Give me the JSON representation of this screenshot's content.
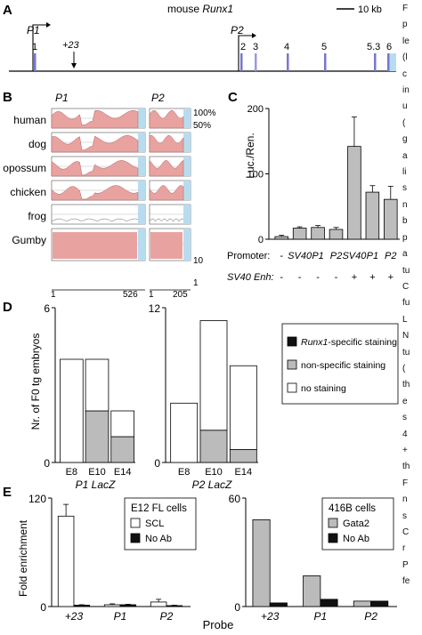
{
  "panels": {
    "A": {
      "label": "A",
      "title_prefix": "mouse ",
      "gene": "Runx1",
      "scale_bar": "10 kb",
      "promoters": [
        "P1",
        "P2"
      ],
      "enhancer": "+23",
      "exons": [
        "1",
        "2",
        "3",
        "4",
        "5",
        "5.3",
        "6"
      ]
    },
    "B": {
      "label": "B",
      "region_labels": [
        "P1",
        "P2"
      ],
      "species": [
        "human",
        "dog",
        "opossum",
        "chicken",
        "frog",
        "Gumby"
      ],
      "right_axis": [
        "100%",
        "50%"
      ],
      "gumby_axis": "10",
      "gumby_axis_low": "1",
      "p1_axis": [
        "1",
        "526"
      ],
      "p2_axis": [
        "1",
        "205"
      ]
    },
    "C": {
      "label": "C",
      "chart_data": {
        "type": "bar",
        "ylabel": "Luc./Ren.",
        "ylim": [
          0,
          200
        ],
        "yticks": [
          "0",
          "100",
          "200"
        ],
        "row_labels": [
          "Promoter:",
          "SV40 Enh:"
        ],
        "promoter_row": [
          "-",
          "SV40",
          "P1",
          "P2",
          "SV40",
          "P1",
          "P2"
        ],
        "enhancer_row": [
          "-",
          "-",
          "-",
          "-",
          "+",
          "+",
          "+"
        ],
        "values": [
          4,
          17,
          18,
          15,
          142,
          72,
          61
        ],
        "errors": [
          2,
          2,
          3,
          3,
          45,
          10,
          20
        ]
      }
    },
    "D": {
      "label": "D",
      "ylabel": "Nr. of F0 tg embryos",
      "legend": [
        "Runx1-specific staining",
        "non-specific staining",
        "no staining"
      ],
      "colors": {
        "specific": "#111111",
        "nonspecific": "#bbbbbb",
        "none": "#ffffff"
      },
      "chart_data": [
        {
          "type": "bar",
          "xlabel_name": "P1",
          "xlabel_gene": "LacZ",
          "categories": [
            "E8",
            "E10",
            "E14"
          ],
          "ylim": [
            0,
            6
          ],
          "yticks": [
            "0",
            "6"
          ],
          "series": [
            {
              "name": "Runx1-specific staining",
              "values": [
                0,
                0,
                0
              ]
            },
            {
              "name": "non-specific staining",
              "values": [
                0,
                2,
                1
              ]
            },
            {
              "name": "no staining",
              "values": [
                4,
                2,
                1
              ]
            }
          ]
        },
        {
          "type": "bar",
          "xlabel_name": "P2",
          "xlabel_gene": "LacZ",
          "categories": [
            "E8",
            "E10",
            "E14"
          ],
          "ylim": [
            0,
            12
          ],
          "yticks": [
            "0",
            "12"
          ],
          "series": [
            {
              "name": "Runx1-specific staining",
              "values": [
                0,
                0,
                0
              ]
            },
            {
              "name": "non-specific staining",
              "values": [
                0,
                2.5,
                1
              ]
            },
            {
              "name": "no staining",
              "values": [
                4.6,
                8.5,
                6.5
              ]
            }
          ]
        }
      ]
    },
    "E": {
      "label": "E",
      "ylabel": "Fold enrichment",
      "xlabel": "Probe",
      "chart_data": [
        {
          "type": "bar",
          "legend_title": "E12 FL cells",
          "categories": [
            "+23",
            "P1",
            "P2"
          ],
          "ylim": [
            0,
            120
          ],
          "yticks": [
            "0",
            "120"
          ],
          "series": [
            {
              "name": "SCL",
              "color": "#ffffff",
              "values": [
                100,
                2,
                5
              ],
              "errors": [
                13,
                1,
                3
              ]
            },
            {
              "name": "No Ab",
              "color": "#111111",
              "values": [
                1.5,
                2,
                1
              ],
              "errors": [
                0.5,
                0.5,
                0.5
              ]
            }
          ]
        },
        {
          "type": "bar",
          "legend_title": "416B cells",
          "categories": [
            "+23",
            "P1",
            "P2"
          ],
          "ylim": [
            0,
            60
          ],
          "yticks": [
            "0",
            "60"
          ],
          "series": [
            {
              "name": "Gata2",
              "color": "#bbbbbb",
              "values": [
                48,
                17,
                3
              ]
            },
            {
              "name": "No Ab",
              "color": "#111111",
              "values": [
                2,
                4,
                3
              ]
            }
          ]
        }
      ]
    }
  },
  "caption_fragment": [
    "F",
    "p",
    "le",
    "(l",
    "c",
    "in",
    "u",
    "(",
    "g",
    "a",
    "li",
    "s",
    "n",
    "b",
    "p",
    "a",
    "tu",
    "C",
    "fu",
    "L",
    "N",
    "tu",
    "(",
    "th",
    "e",
    "s",
    "4",
    "+",
    "th",
    "F",
    "n",
    "s",
    "C",
    "r",
    "P",
    "fe"
  ]
}
